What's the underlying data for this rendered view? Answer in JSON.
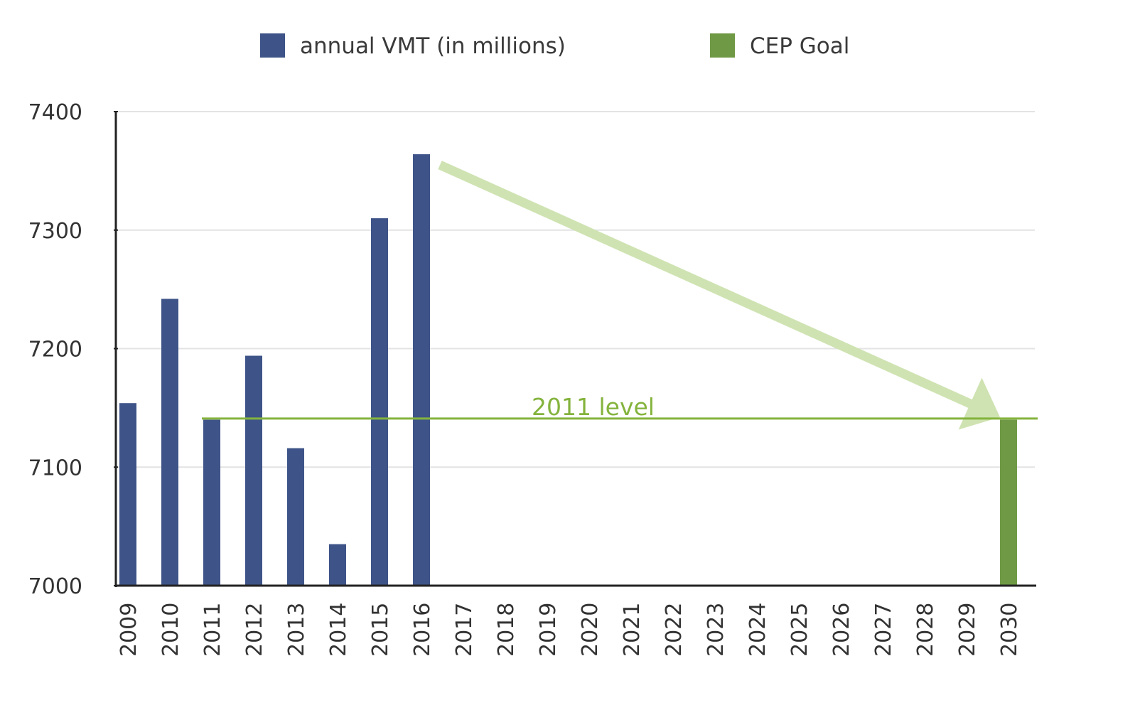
{
  "chart_data": {
    "type": "bar",
    "categories": [
      "2009",
      "2010",
      "2011",
      "2012",
      "2013",
      "2014",
      "2015",
      "2016",
      "2017",
      "2018",
      "2019",
      "2020",
      "2021",
      "2022",
      "2023",
      "2024",
      "2025",
      "2026",
      "2027",
      "2028",
      "2029",
      "2030"
    ],
    "series": [
      {
        "name": "annual VMT (in millions)",
        "color": "#3e5488",
        "values": [
          7154,
          7242,
          7140,
          7194,
          7116,
          7035,
          7310,
          7364,
          null,
          null,
          null,
          null,
          null,
          null,
          null,
          null,
          null,
          null,
          null,
          null,
          null,
          null
        ]
      },
      {
        "name": "CEP Goal",
        "color": "#709946",
        "values": [
          null,
          null,
          null,
          null,
          null,
          null,
          null,
          null,
          null,
          null,
          null,
          null,
          null,
          null,
          null,
          null,
          null,
          null,
          null,
          null,
          null,
          7140
        ]
      }
    ],
    "ylim": [
      7000,
      7400
    ],
    "yticks": [
      7000,
      7100,
      7200,
      7300,
      7400
    ],
    "title": "",
    "xlabel": "",
    "ylabel": "",
    "grid": true,
    "legend_position": "top-center",
    "reference_line": {
      "label": "2011 level",
      "value": 7141,
      "from_category": "2011",
      "color": "#84b33d"
    },
    "trend_arrow": {
      "from_category": "2016",
      "from_value": 7355,
      "to_category": "2030",
      "to_value": 7141,
      "color": "#cfe3b2"
    }
  }
}
